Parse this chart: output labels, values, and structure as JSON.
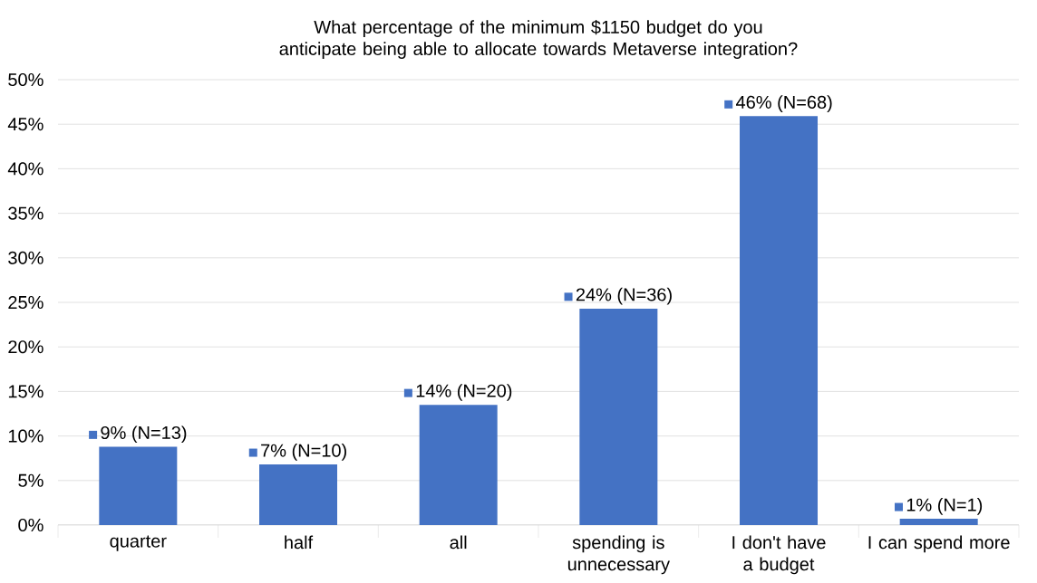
{
  "chart_data": {
    "type": "bar",
    "title": "What percentage of the minimum $1150 budget do you anticipate being able to allocate towards Metaverse integration?",
    "categories": [
      "quarter",
      "half",
      "all",
      "spending is unnecessary",
      "I don't have a budget",
      "I can spend more"
    ],
    "values": [
      8.8,
      6.8,
      13.5,
      24.3,
      45.9,
      0.7
    ],
    "value_labels": [
      "9% (N=13)",
      "7% (N=10)",
      "14% (N=20)",
      "24% (N=36)",
      "46% (N=68)",
      "1% (N=1)"
    ],
    "color": "#4472c4",
    "ylim": [
      0,
      50
    ],
    "yticks": [
      {
        "value": 0,
        "label": "0%"
      },
      {
        "value": 5,
        "label": "5%"
      },
      {
        "value": 10,
        "label": "10%"
      },
      {
        "value": 15,
        "label": "15%"
      },
      {
        "value": 20,
        "label": "20%"
      },
      {
        "value": 25,
        "label": "25%"
      },
      {
        "value": 30,
        "label": "30%"
      },
      {
        "value": 35,
        "label": "35%"
      },
      {
        "value": 40,
        "label": "40%"
      },
      {
        "value": 45,
        "label": "45%"
      },
      {
        "value": 50,
        "label": "50%"
      }
    ],
    "grid": "y"
  }
}
